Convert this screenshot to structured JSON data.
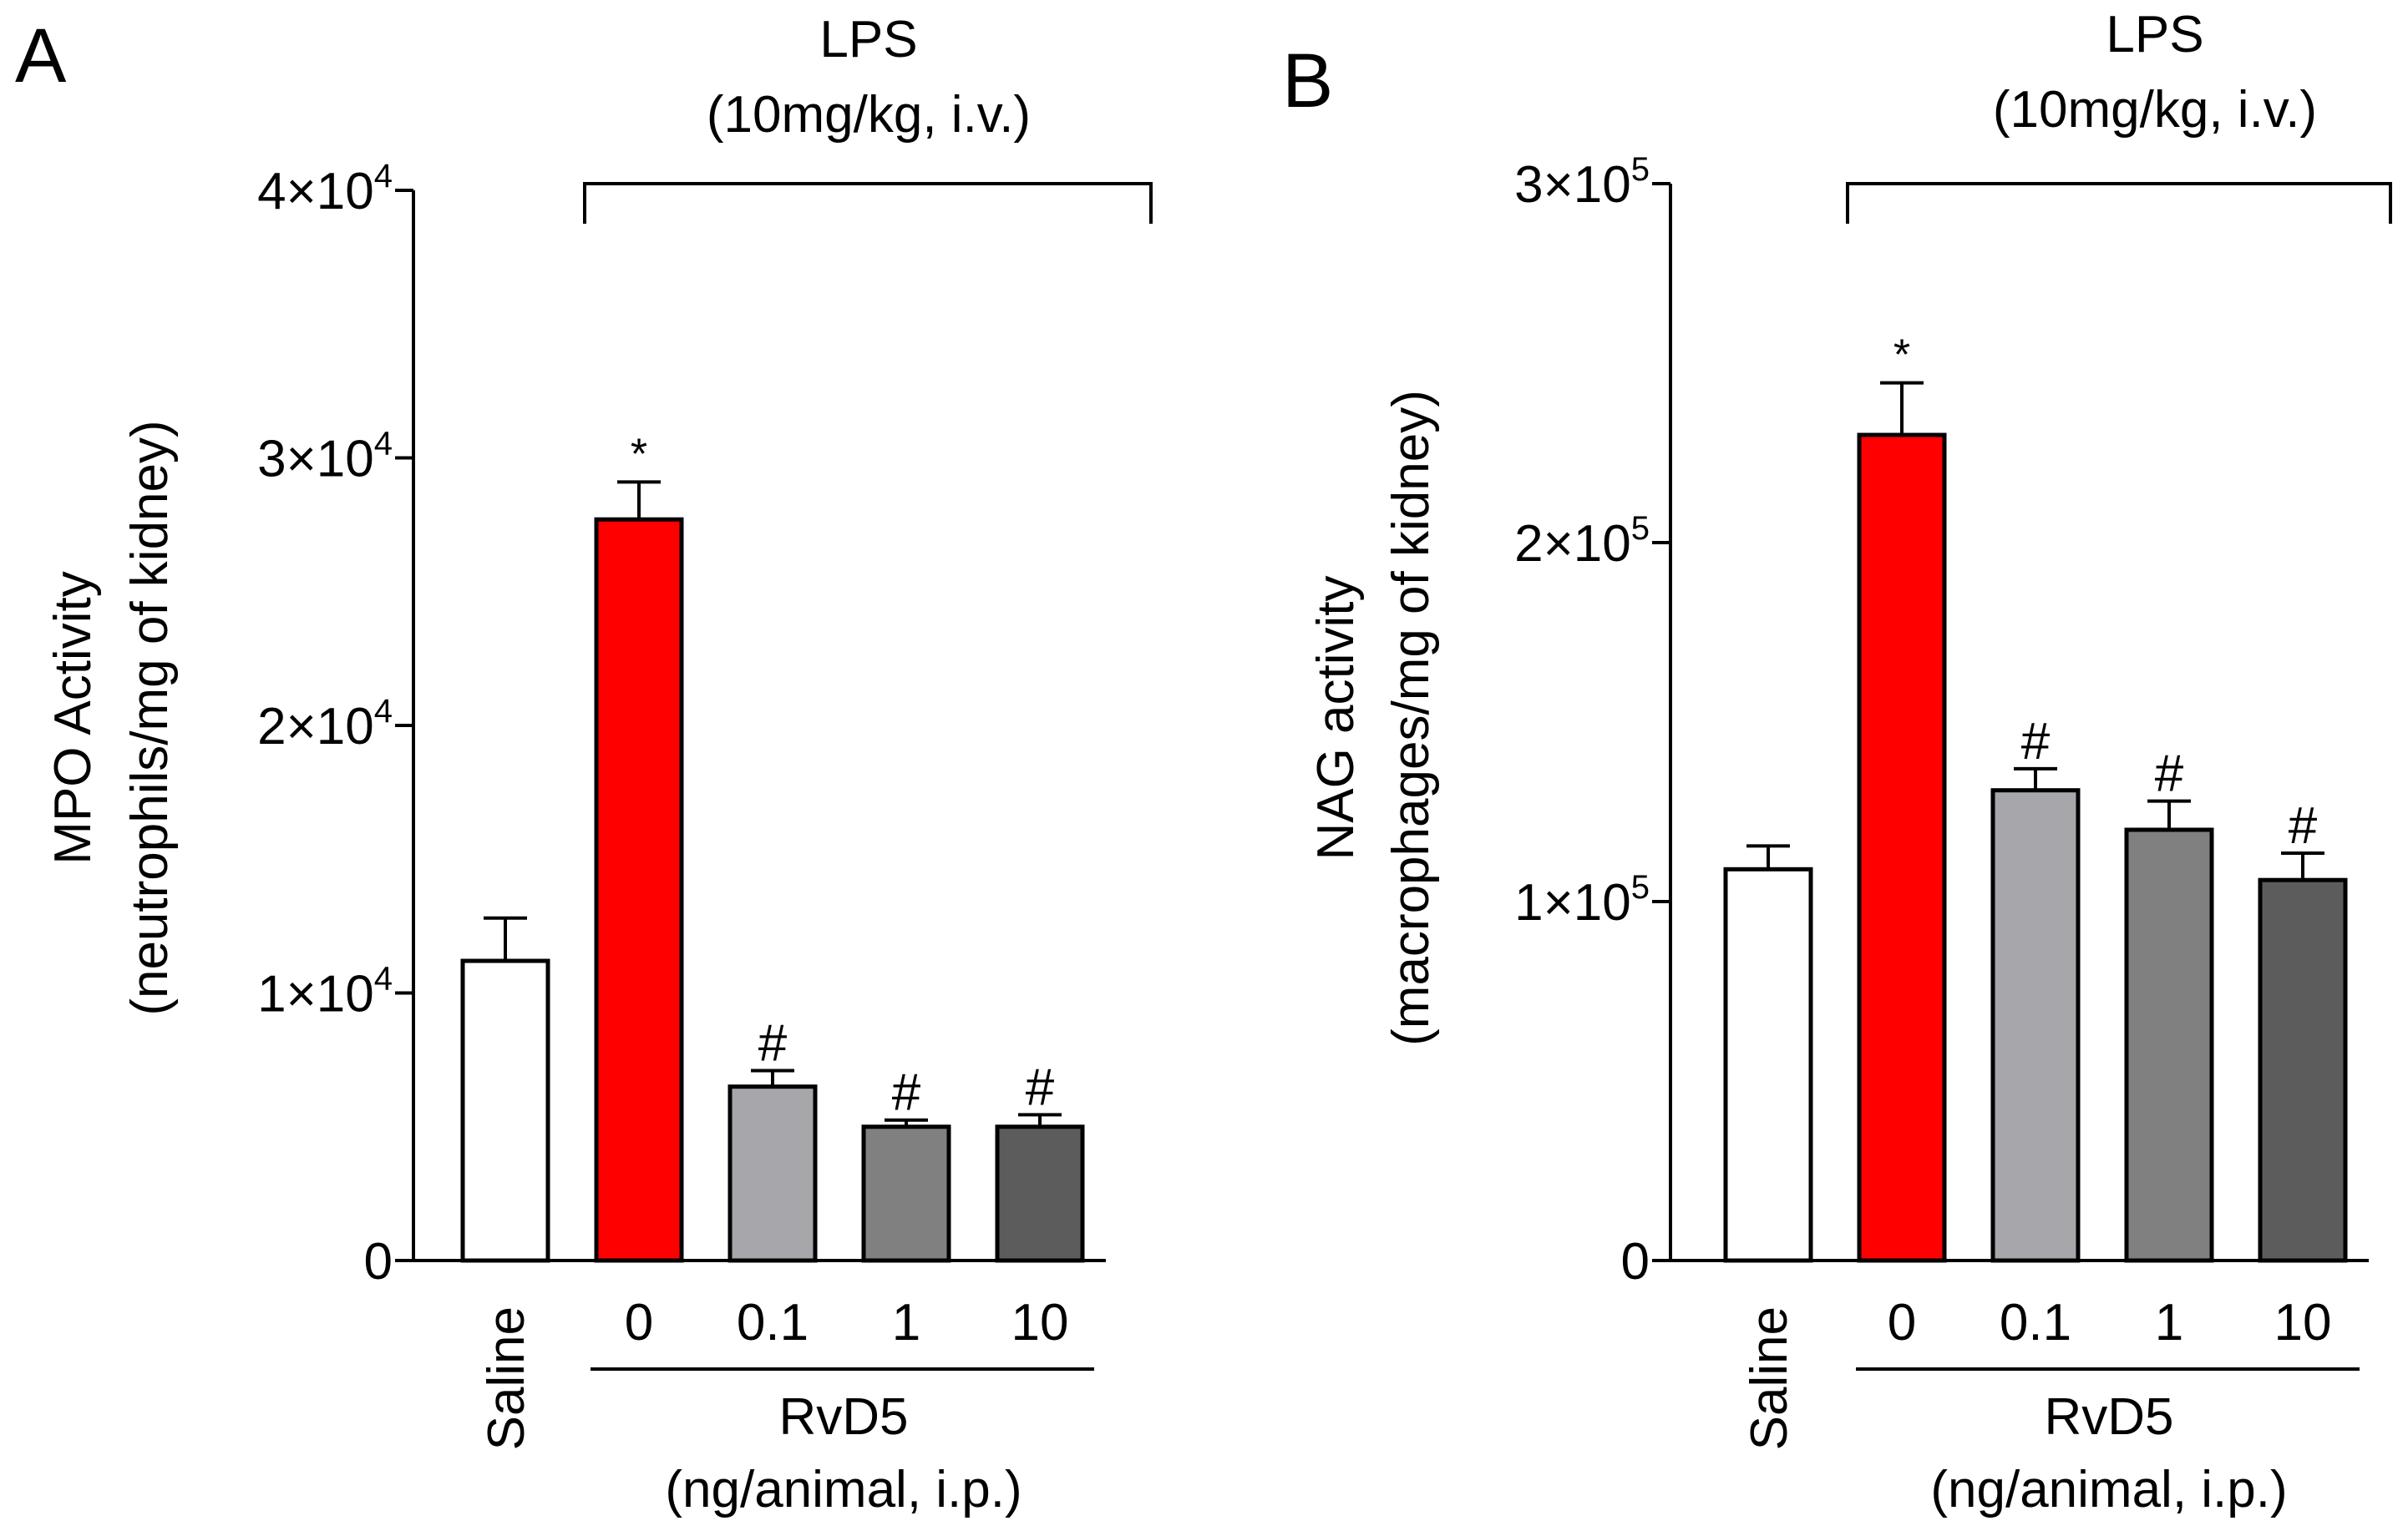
{
  "colors": {
    "saline": "#ffffff",
    "lps_vehicle": "#ff0000",
    "rvd5_0_1": "#a6a6ab",
    "rvd5_1": "#808080",
    "rvd5_10": "#5c5c5c",
    "axis": "#000000"
  },
  "chart_data": [
    {
      "type": "bar",
      "panel_label": "A",
      "title": "",
      "ylabel": "MPO Activity",
      "ylabel_sub": "(neutrophils/mg of kidney)",
      "ylim": [
        0,
        40000
      ],
      "yticks": [
        {
          "value": 0,
          "base": "0",
          "exp": ""
        },
        {
          "value": 10000,
          "base": "1×10",
          "exp": "4"
        },
        {
          "value": 20000,
          "base": "2×10",
          "exp": "4"
        },
        {
          "value": 30000,
          "base": "3×10",
          "exp": "4"
        },
        {
          "value": 40000,
          "base": "4×10",
          "exp": "4"
        }
      ],
      "categories": [
        "Saline",
        "0",
        "0.1",
        "1",
        "10"
      ],
      "values": [
        11200,
        27700,
        6500,
        5000,
        5000
      ],
      "errors": [
        1600,
        1400,
        600,
        250,
        450
      ],
      "annotations": [
        "",
        "*",
        "#",
        "#",
        "#"
      ],
      "group_bracket": {
        "label": "LPS",
        "sublabel": "(10mg/kg, i.v.)",
        "from": 1,
        "to": 4
      },
      "x_group": {
        "label": "RvD5",
        "sublabel": "(ng/animal, i.p.)",
        "from": 1,
        "to": 4
      }
    },
    {
      "type": "bar",
      "panel_label": "B",
      "title": "",
      "ylabel": "NAG activity",
      "ylabel_sub": "(macrophages/mg of kidney)",
      "ylim": [
        0,
        300000
      ],
      "yticks": [
        {
          "value": 0,
          "base": "0",
          "exp": ""
        },
        {
          "value": 100000,
          "base": "1×10",
          "exp": "5"
        },
        {
          "value": 200000,
          "base": "2×10",
          "exp": "5"
        },
        {
          "value": 300000,
          "base": "3×10",
          "exp": "5"
        }
      ],
      "categories": [
        "Saline",
        "0",
        "0.1",
        "1",
        "10"
      ],
      "values": [
        109000,
        230000,
        131000,
        120000,
        106000
      ],
      "errors": [
        6500,
        14500,
        6000,
        8000,
        7500
      ],
      "annotations": [
        "",
        "*",
        "#",
        "#",
        "#"
      ],
      "group_bracket": {
        "label": "LPS",
        "sublabel": "(10mg/kg, i.v.)",
        "from": 1,
        "to": 4
      },
      "x_group": {
        "label": "RvD5",
        "sublabel": "(ng/animal, i.p.)",
        "from": 1,
        "to": 4
      }
    }
  ]
}
